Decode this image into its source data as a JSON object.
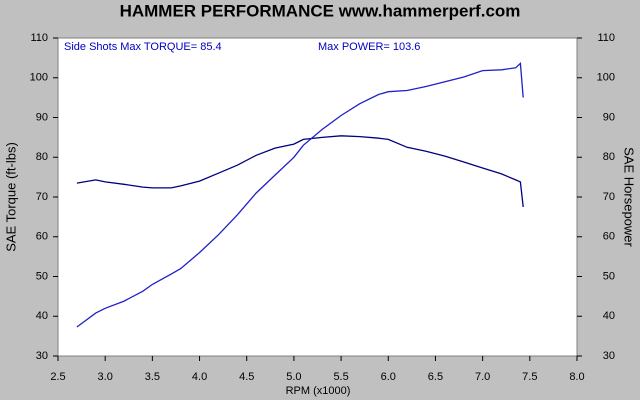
{
  "chart_data": {
    "type": "line",
    "title": "HAMMER PERFORMANCE www.hammerperf.com",
    "x_label": "RPM (x1000)",
    "y_label": "SAE Torque (ft-lbs)",
    "y2_label": "SAE Horsepower",
    "annotations": [
      "Side Shots  Max TORQUE= 85.4",
      "Max POWER= 103.6"
    ],
    "x": [
      2.7,
      2.9,
      3.0,
      3.2,
      3.4,
      3.5,
      3.7,
      3.8,
      4.0,
      4.2,
      4.4,
      4.6,
      4.8,
      5.0,
      5.1,
      5.3,
      5.5,
      5.7,
      5.9,
      6.0,
      6.2,
      6.4,
      6.6,
      6.8,
      7.0,
      7.2,
      7.35,
      7.4,
      7.43
    ],
    "series": [
      {
        "color": "#000080",
        "values": [
          73.5,
          74.3,
          73.8,
          73.2,
          72.5,
          72.3,
          72.3,
          72.8,
          74,
          76,
          78,
          80.5,
          82.3,
          83.3,
          84.5,
          85,
          85.4,
          85.2,
          84.8,
          84.5,
          82.5,
          81.5,
          80.3,
          78.8,
          77.3,
          75.8,
          74.3,
          73.8,
          67.5
        ]
      },
      {
        "color": "#2020c8",
        "axis": "y2",
        "values": [
          37.3,
          40.8,
          42,
          43.8,
          46.3,
          48,
          50.6,
          52,
          56,
          60.5,
          65.5,
          71,
          75.5,
          80,
          83,
          87,
          90.5,
          93.5,
          95.8,
          96.5,
          96.8,
          97.8,
          99,
          100.2,
          101.8,
          102,
          102.5,
          103.6,
          95
        ]
      }
    ],
    "xlim": [
      2.5,
      8.0
    ],
    "xticks": [
      2.5,
      {
        "value": 3,
        "label": "3.0"
      },
      3.5,
      {
        "value": 4,
        "label": "4.0"
      },
      4.5,
      {
        "value": 5,
        "label": "5.0"
      },
      5.5,
      {
        "value": 6,
        "label": "6.0"
      },
      6.5,
      {
        "value": 7,
        "label": "7.0"
      },
      7.5,
      {
        "value": 8,
        "label": "8.0"
      }
    ],
    "ylim": [
      30,
      110
    ],
    "yticks": [
      30,
      40,
      50,
      60,
      70,
      80,
      90,
      100,
      110
    ],
    "y2lim": [
      30,
      110
    ],
    "y2ticks": [
      30,
      40,
      50,
      60,
      70,
      80,
      90,
      100,
      110
    ],
    "grid": false
  }
}
